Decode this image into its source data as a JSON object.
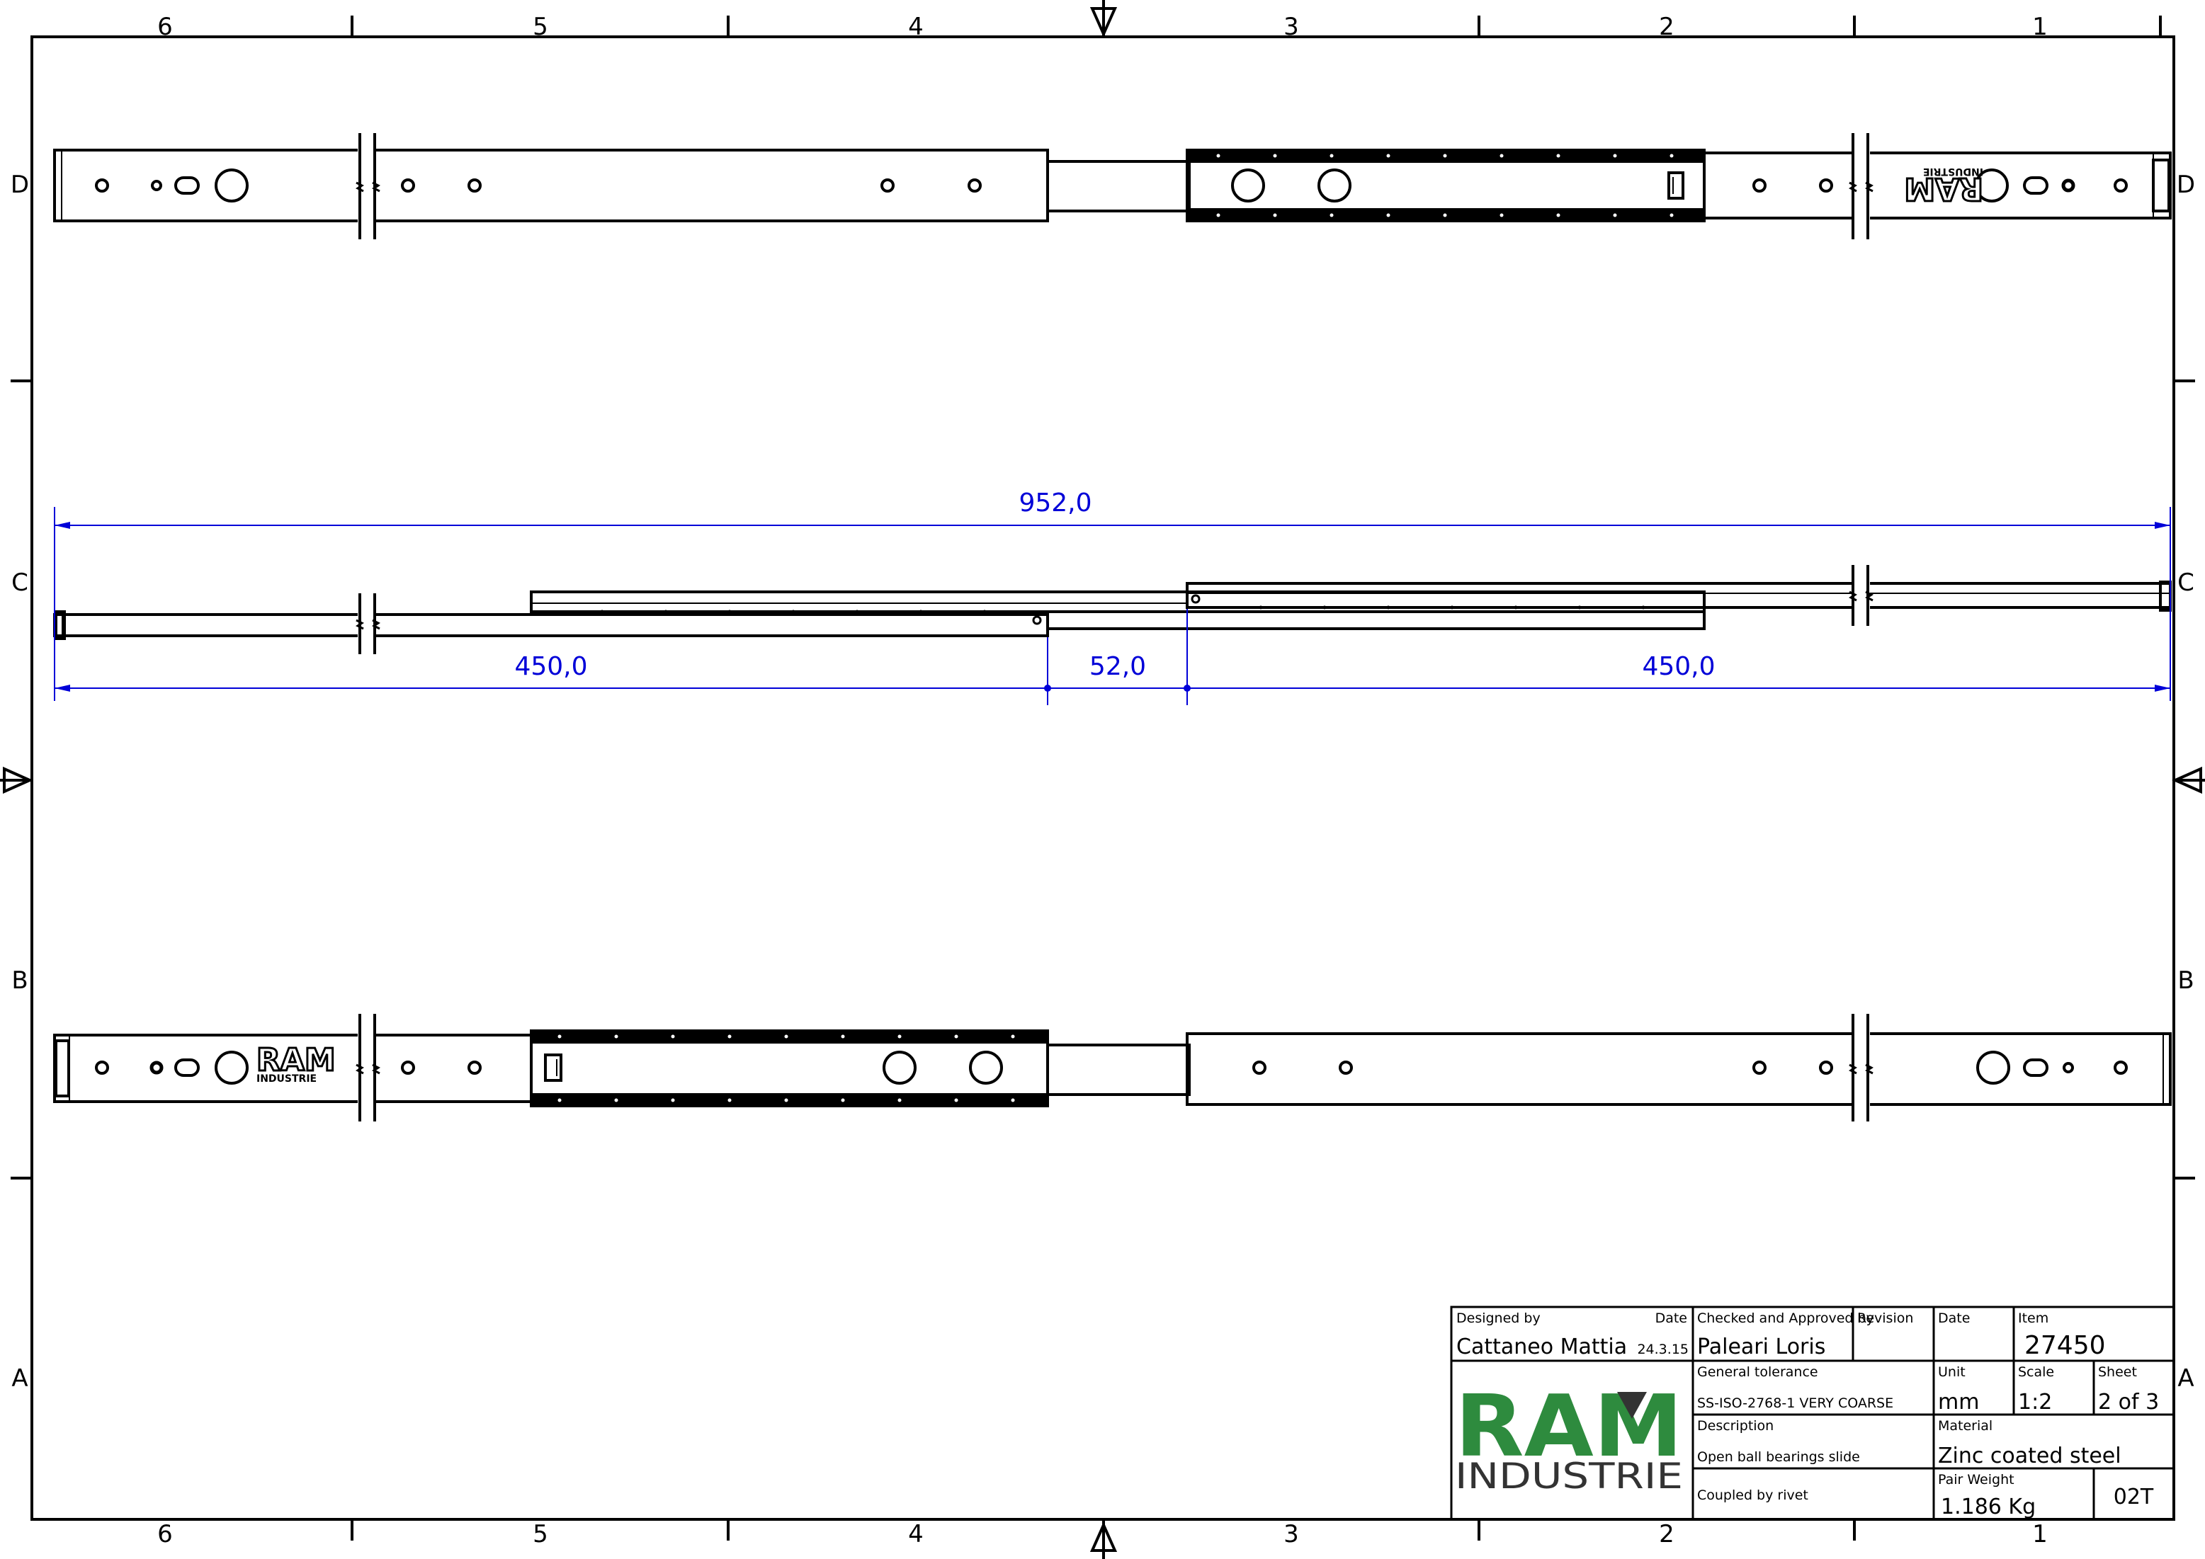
{
  "zones": {
    "columns": [
      "6",
      "5",
      "4",
      "3",
      "2",
      "1"
    ],
    "rows": [
      "D",
      "C",
      "B",
      "A"
    ]
  },
  "dimensions": {
    "overall": "952,0",
    "left_section": "450,0",
    "middle_section": "52,0",
    "right_section": "450,0"
  },
  "rail_logo": {
    "brand": "RAM",
    "sub": "INDUSTRIE"
  },
  "title_block": {
    "designed_by_label": "Designed by",
    "designed_by": "Cattaneo Mattia",
    "date_label": "Date",
    "date": "24.3.15",
    "checked_label": "Checked and Approved by",
    "checked_by": "Paleari Loris",
    "revision_label": "Revision",
    "date2_label": "Date",
    "item_label": "Item",
    "item": "27450",
    "general_tolerance_label": "General tolerance",
    "general_tolerance": "SS-ISO-2768-1 VERY COARSE",
    "unit_label": "Unit",
    "unit": "mm",
    "scale_label": "Scale",
    "scale": "1:2",
    "sheet_label": "Sheet",
    "sheet": "2 of 3",
    "description_label": "Description",
    "description": "Open ball bearings slide",
    "material_label": "Material",
    "material": "Zinc coated steel",
    "note": "Coupled by rivet",
    "pair_weight_label": "Pair Weight",
    "pair_weight": "1.186 Kg",
    "code": "02T",
    "logo_brand": "RAM",
    "logo_sub": "INDUSTRIE"
  },
  "colors": {
    "line": "#000000",
    "dimension": "#0000d8",
    "logo_green": "#2e8b3e",
    "logo_triangle": "#333333"
  }
}
